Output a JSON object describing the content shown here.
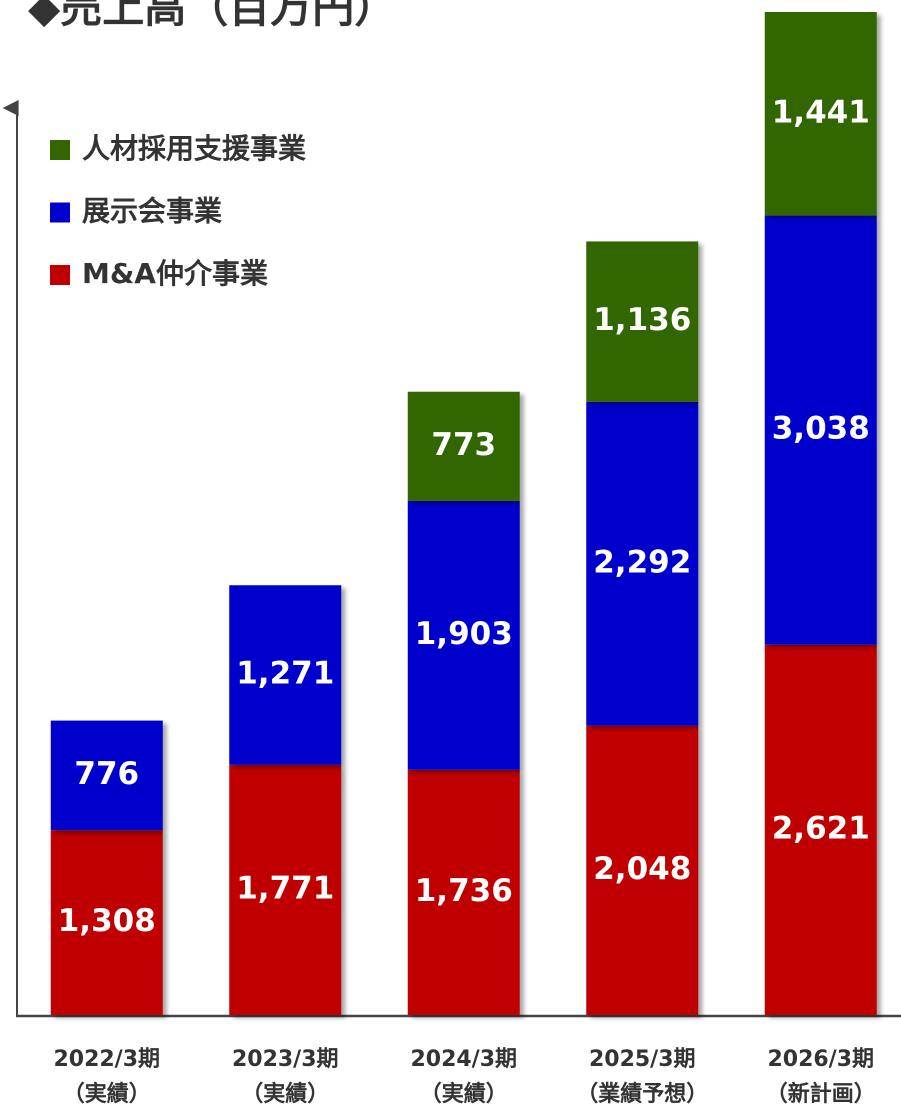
{
  "chart_data": {
    "type": "bar",
    "stacked": true,
    "title": "◆売上高（百万円）",
    "categories": [
      [
        "2022/3期",
        "（実績）"
      ],
      [
        "2023/3期",
        "（実績）"
      ],
      [
        "2024/3期",
        "（実績）"
      ],
      [
        "2025/3期",
        "（業績予想）"
      ],
      [
        "2026/3期",
        "（新計画）"
      ]
    ],
    "series": [
      {
        "name": "M&A仲介事業",
        "color": "#c00000",
        "values": [
          1308,
          1771,
          1736,
          2048,
          2621
        ],
        "value_labels": [
          "1,308",
          "1,771",
          "1,736",
          "2,048",
          "2,621"
        ]
      },
      {
        "name": "展示会事業",
        "color": "#0000cc",
        "values": [
          776,
          1271,
          1903,
          2292,
          3038
        ],
        "value_labels": [
          "776",
          "1,271",
          "1,903",
          "2,292",
          "3,038"
        ]
      },
      {
        "name": "人材採用支援事業",
        "color": "#336600",
        "values": [
          null,
          null,
          773,
          1136,
          1441
        ],
        "value_labels": [
          null,
          null,
          "773",
          "1,136",
          "1,441"
        ]
      }
    ],
    "ylim": [
      0,
      7100
    ]
  }
}
